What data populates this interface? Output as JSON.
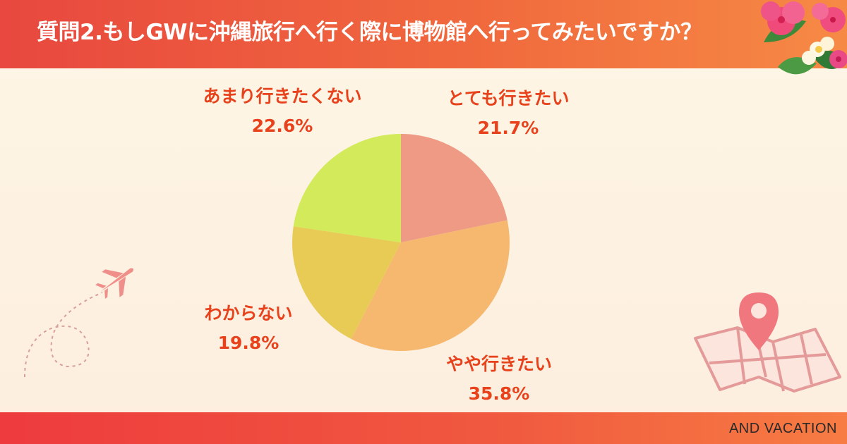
{
  "header": {
    "title": "質問2.もしGWに沖縄旅行へ行く際に博物館へ行ってみたいですか？"
  },
  "footer": {
    "brand": "AND VACATION"
  },
  "colors": {
    "header": "#ee5a3d",
    "label_text": "#e8421c",
    "slice_very": "#ef9a84",
    "slice_somewhat": "#f5b86e",
    "slice_dontknow": "#e8cb55",
    "slice_notmuch": "#d3ea5a"
  },
  "labels": {
    "very": {
      "name": "とても行きたい",
      "pct": "21.7%"
    },
    "somewhat": {
      "name": "やや行きたい",
      "pct": "35.8%"
    },
    "dontknow": {
      "name": "わからない",
      "pct": "19.8%"
    },
    "notmuch": {
      "name": "あまり行きたくない",
      "pct": "22.6%"
    }
  },
  "decorations": [
    "hibiscus-flowers",
    "airplane-icon",
    "map-pin-icon"
  ],
  "chart_data": {
    "type": "pie",
    "title": "質問2.もしGWに沖縄旅行へ行く際に博物館へ行ってみたいですか？",
    "start": "12 o'clock",
    "direction": "clockwise",
    "slices": [
      {
        "label": "とても行きたい",
        "value": 21.7,
        "color": "#ef9a84"
      },
      {
        "label": "やや行きたい",
        "value": 35.8,
        "color": "#f5b86e"
      },
      {
        "label": "わからない",
        "value": 19.8,
        "color": "#e8cb55"
      },
      {
        "label": "あまり行きたくない",
        "value": 22.6,
        "color": "#d3ea5a"
      }
    ]
  }
}
